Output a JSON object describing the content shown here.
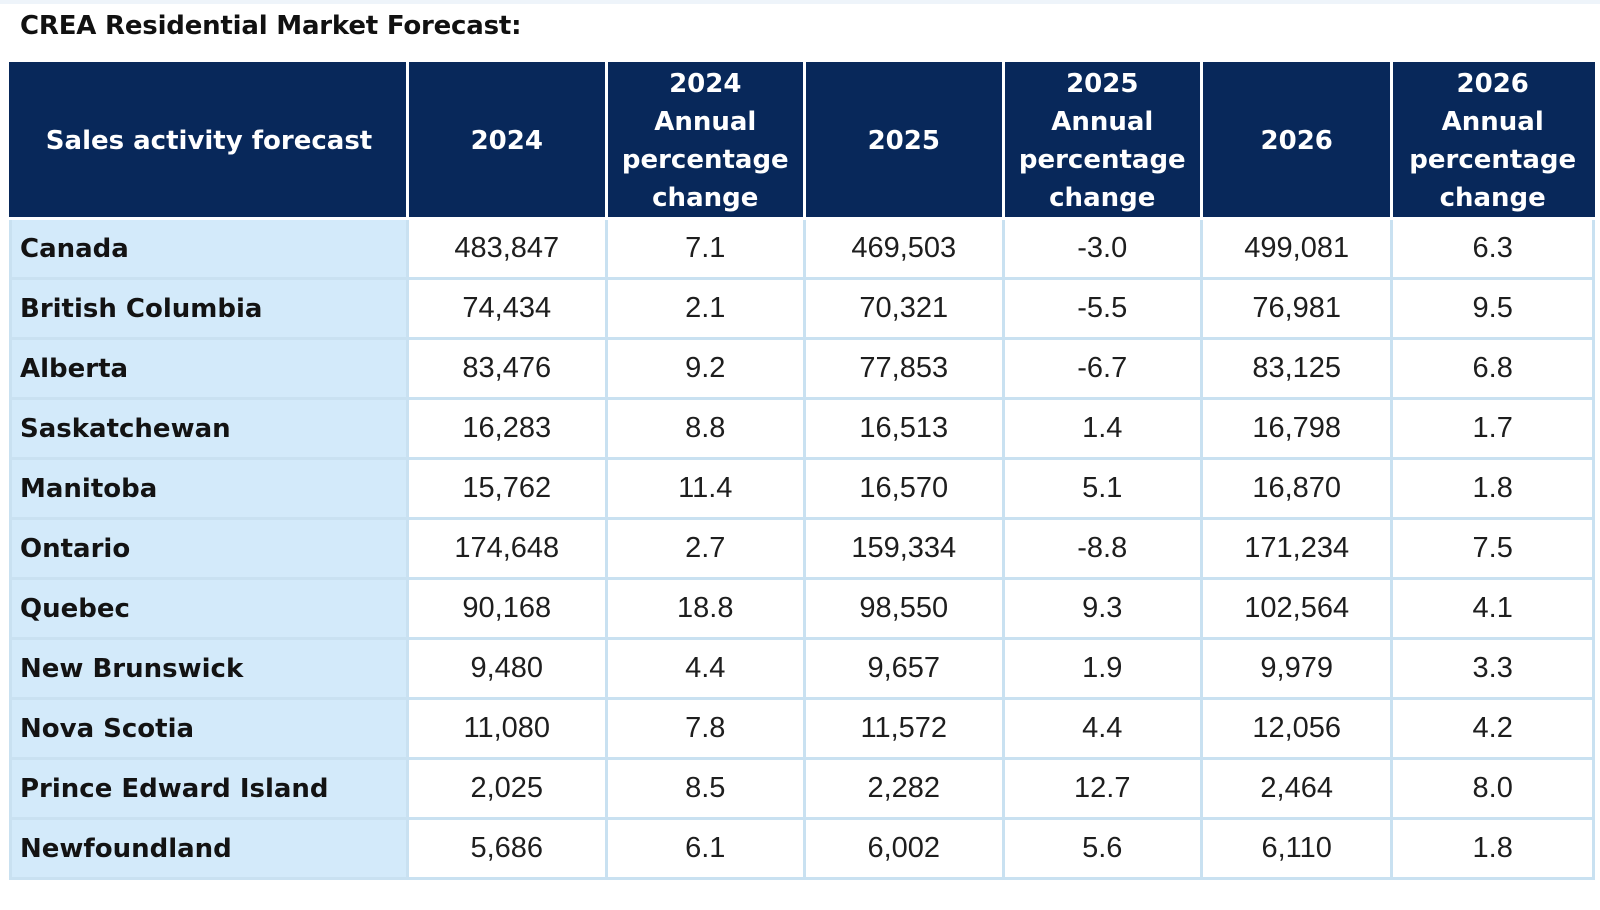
{
  "title": "CREA Residential Market Forecast:",
  "table": {
    "headers": [
      "Sales activity forecast",
      "2024",
      "2024 Annual percentage change",
      "2025",
      "2025 Annual percentage change",
      "2026",
      "2026 Annual percentage change"
    ],
    "rows": [
      [
        "Canada",
        "483,847",
        "7.1",
        "469,503",
        "-3.0",
        "499,081",
        "6.3"
      ],
      [
        "British Columbia",
        "74,434",
        "2.1",
        "70,321",
        "-5.5",
        "76,981",
        "9.5"
      ],
      [
        "Alberta",
        "83,476",
        "9.2",
        "77,853",
        "-6.7",
        "83,125",
        "6.8"
      ],
      [
        "Saskatchewan",
        "16,283",
        "8.8",
        "16,513",
        "1.4",
        "16,798",
        "1.7"
      ],
      [
        "Manitoba",
        "15,762",
        "11.4",
        "16,570",
        "5.1",
        "16,870",
        "1.8"
      ],
      [
        "Ontario",
        "174,648",
        "2.7",
        "159,334",
        "-8.8",
        "171,234",
        "7.5"
      ],
      [
        "Quebec",
        "90,168",
        "18.8",
        "98,550",
        "9.3",
        "102,564",
        "4.1"
      ],
      [
        "New Brunswick",
        "9,480",
        "4.4",
        "9,657",
        "1.9",
        "9,979",
        "3.3"
      ],
      [
        "Nova Scotia",
        "11,080",
        "7.8",
        "11,572",
        "4.4",
        "12,056",
        "4.2"
      ],
      [
        "Prince Edward Island",
        "2,025",
        "8.5",
        "2,282",
        "12.7",
        "2,464",
        "8.0"
      ],
      [
        "Newfoundland",
        "5,686",
        "6.1",
        "6,002",
        "5.6",
        "6,110",
        "1.8"
      ]
    ]
  },
  "colors": {
    "header_bg": "#08285a",
    "region_bg": "#d3eafa",
    "grid": "#c9e1f1"
  }
}
